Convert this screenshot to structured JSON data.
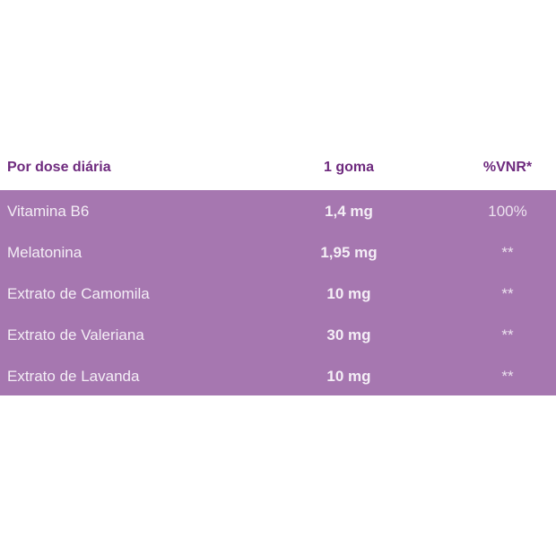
{
  "header": {
    "col1": "Por dose diária",
    "col2": "1 goma",
    "col3": "%VNR*"
  },
  "rows": [
    {
      "name": "Vitamina B6",
      "amount": "1,4 mg",
      "vnr": "100%"
    },
    {
      "name": "Melatonina",
      "amount": "1,95 mg",
      "vnr": "**"
    },
    {
      "name": "Extrato de Camomila",
      "amount": "10 mg",
      "vnr": "**"
    },
    {
      "name": "Extrato de Valeriana",
      "amount": "30 mg",
      "vnr": "**"
    },
    {
      "name": "Extrato de Lavanda",
      "amount": "10 mg",
      "vnr": "**"
    }
  ],
  "colors": {
    "header_text": "#6e2a7e",
    "table_bg": "#a677b0"
  }
}
